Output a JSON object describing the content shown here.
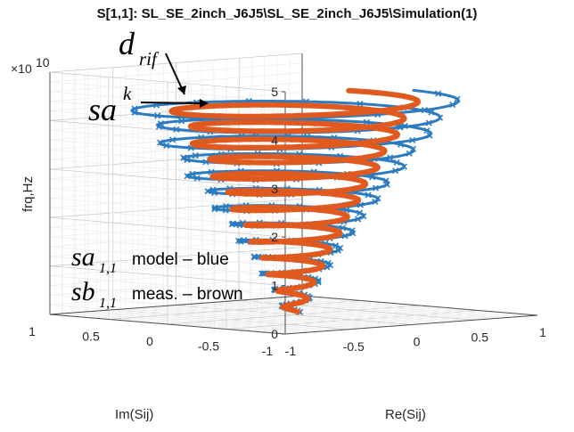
{
  "chart_data": {
    "type": "scatter",
    "title": "S[1,1]: SL_SE_2inch_J6J5\\SL_SE_2inch_J6J5\\Simulation(1)",
    "xlabel": "Re(Sij)",
    "ylabel": "Im(Sij)",
    "zlabel": "frq,Hz",
    "z_exponent_label": "×10",
    "z_exponent_power": "10",
    "xlim": [
      -1,
      1
    ],
    "ylim": [
      -1,
      1
    ],
    "zlim": [
      0,
      5
    ],
    "x_ticks": [
      "-1",
      "-0.5",
      "0",
      "0.5",
      "1"
    ],
    "y_ticks": [
      "-1",
      "-0.5",
      "0",
      "0.5",
      "1"
    ],
    "z_ticks": [
      "0",
      "1",
      "2",
      "3",
      "4",
      "5"
    ],
    "grid": true,
    "series": [
      {
        "name": "model",
        "color": "#2b7bc0",
        "marker": "x",
        "spiral": {
          "radius_start": 0.05,
          "radius_end": 0.95,
          "turns": 13
        }
      },
      {
        "name": "meas.",
        "color": "#e05a1f",
        "marker": "o",
        "spiral": {
          "radius_start": 0.05,
          "radius_end": 0.72,
          "turns": 13
        }
      }
    ],
    "annotations": {
      "d_rif": {
        "main": "d",
        "sub": "rif"
      },
      "sa_k": {
        "main": "sa",
        "sup": "k"
      },
      "legend_sa": {
        "main": "sa",
        "sub": "1,1",
        "text": "model – blue"
      },
      "legend_sb": {
        "main": "sb",
        "sub": "1,1",
        "text": "meas. – brown"
      }
    }
  }
}
